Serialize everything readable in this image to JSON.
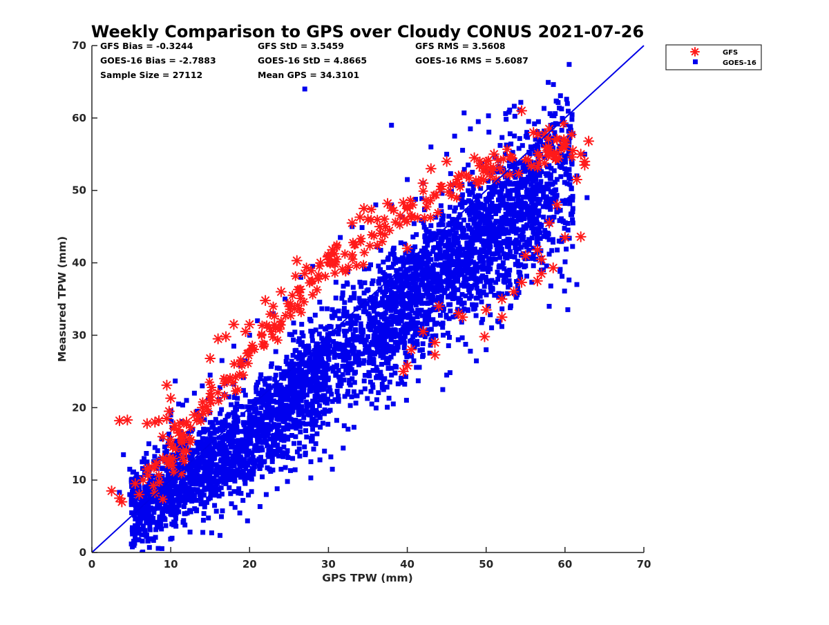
{
  "chart_data": {
    "type": "scatter",
    "title": "Weekly Comparison to GPS over Cloudy CONUS 2021-07-26",
    "xlabel": "GPS TPW (mm)",
    "ylabel": "Measured TPW (mm)",
    "xlim": [
      0,
      70
    ],
    "ylim": [
      0,
      70
    ],
    "x_ticks": [
      0,
      10,
      20,
      30,
      40,
      50,
      60,
      70
    ],
    "y_ticks": [
      0,
      10,
      20,
      30,
      40,
      50,
      60,
      70
    ],
    "grid": false,
    "legend_position": "outside top-right",
    "stats": [
      [
        "GFS Bias = -0.3244",
        "GFS StD = 3.5459",
        "GFS RMS = 3.5608"
      ],
      [
        "GOES-16 Bias = -2.7883",
        "GOES-16 StD = 4.8665",
        "GOES-16 RMS = 5.6087"
      ],
      [
        "Sample Size = 27112",
        "Mean GPS = 34.3101",
        ""
      ]
    ],
    "reference_line": {
      "label": "",
      "from": [
        0,
        0
      ],
      "to": [
        70,
        70
      ],
      "color": "#0000e6"
    },
    "series": [
      {
        "name": "GOES-16",
        "marker": "square",
        "color": "#0000ee",
        "bulk_trend": [
          [
            4,
            5.5
          ],
          [
            10,
            9
          ],
          [
            20,
            16
          ],
          [
            30,
            26
          ],
          [
            40,
            35
          ],
          [
            50,
            44
          ],
          [
            60,
            52
          ]
        ],
        "points": [
          [
            27.0,
            64.0
          ],
          [
            47.2,
            60.7
          ],
          [
            50.3,
            60.3
          ],
          [
            52.9,
            60.8
          ],
          [
            58.1,
            60.6
          ],
          [
            58.6,
            60.3
          ],
          [
            38.0,
            59.0
          ],
          [
            58.3,
            56.5
          ],
          [
            61.0,
            57.8
          ],
          [
            62.5,
            55.0
          ],
          [
            61.5,
            52.0
          ],
          [
            62.8,
            49.0
          ],
          [
            61.0,
            47.5
          ],
          [
            61.0,
            45.5
          ],
          [
            58.0,
            43.2
          ],
          [
            58.0,
            41.2
          ],
          [
            57.0,
            39.0
          ],
          [
            54.0,
            36.8
          ],
          [
            58.2,
            36.8
          ],
          [
            61.5,
            37.0
          ],
          [
            58.0,
            34.0
          ],
          [
            52.0,
            31.2
          ],
          [
            50.0,
            28.0
          ],
          [
            48.0,
            27.8
          ],
          [
            45.0,
            24.5
          ],
          [
            44.5,
            22.5
          ],
          [
            38.0,
            24.5
          ],
          [
            37.0,
            22.5
          ],
          [
            33.0,
            24.0
          ],
          [
            31.5,
            23.0
          ],
          [
            30.0,
            19.5
          ],
          [
            28.0,
            17.0
          ],
          [
            32.0,
            17.5
          ],
          [
            35.5,
            20.5
          ],
          [
            30.5,
            11.5
          ],
          [
            30.3,
            13.2
          ],
          [
            29.5,
            14.0
          ],
          [
            26.3,
            14.3
          ],
          [
            24.0,
            11.5
          ],
          [
            23.5,
            8.8
          ],
          [
            24.8,
            9.8
          ],
          [
            20.2,
            10.5
          ],
          [
            17.0,
            9.5
          ],
          [
            12.5,
            8.5
          ],
          [
            10.0,
            5.3
          ],
          [
            9.0,
            5.3
          ],
          [
            8.6,
            6.5
          ],
          [
            6.5,
            6.0
          ],
          [
            6.5,
            7.0
          ],
          [
            4.0,
            13.5
          ],
          [
            4.8,
            11.5
          ],
          [
            5.5,
            8.5
          ],
          [
            5.0,
            10.0
          ],
          [
            4.8,
            8.0
          ],
          [
            3.5,
            8.3
          ],
          [
            5.3,
            6.8
          ],
          [
            7.0,
            12.5
          ],
          [
            8.0,
            14.5
          ],
          [
            10.0,
            19.0
          ],
          [
            11.0,
            20.5
          ],
          [
            12.0,
            21.0
          ],
          [
            13.0,
            22.0
          ],
          [
            14.0,
            23.0
          ],
          [
            15.0,
            24.5
          ],
          [
            16.5,
            26.5
          ],
          [
            18.0,
            28.5
          ],
          [
            20.0,
            30.0
          ],
          [
            21.0,
            32.0
          ],
          [
            23.0,
            33.0
          ],
          [
            24.5,
            35.0
          ],
          [
            26.5,
            38.0
          ],
          [
            28.0,
            39.5
          ],
          [
            30.0,
            41.0
          ],
          [
            31.5,
            43.5
          ],
          [
            33.0,
            45.0
          ],
          [
            36.0,
            48.0
          ],
          [
            38.0,
            48.0
          ],
          [
            40.0,
            51.5
          ],
          [
            42.0,
            51.0
          ],
          [
            45.0,
            55.0
          ],
          [
            46.0,
            57.5
          ],
          [
            48.0,
            58.5
          ],
          [
            49.0,
            59.5
          ],
          [
            43.0,
            56.0
          ]
        ]
      },
      {
        "name": "GFS",
        "marker": "asterisk",
        "color": "#ff1a1a",
        "bulk_trend": [
          [
            8,
            10
          ],
          [
            12,
            16
          ],
          [
            20,
            28
          ],
          [
            30,
            39
          ],
          [
            40,
            47
          ],
          [
            50,
            53
          ],
          [
            60,
            56
          ]
        ],
        "points": [
          [
            2.5,
            8.5
          ],
          [
            3.5,
            7.5
          ],
          [
            3.8,
            7.0
          ],
          [
            3.5,
            18.2
          ],
          [
            4.5,
            18.3
          ],
          [
            5.5,
            9.5
          ],
          [
            6.0,
            8.0
          ],
          [
            6.5,
            10.0
          ],
          [
            7.0,
            17.8
          ],
          [
            8.0,
            18.0
          ],
          [
            8.5,
            18.2
          ],
          [
            9.5,
            18.5
          ],
          [
            9.8,
            19.5
          ],
          [
            9.5,
            23.1
          ],
          [
            10.0,
            21.3
          ],
          [
            10.5,
            17.5
          ],
          [
            9.0,
            16.0
          ],
          [
            10.0,
            15.0
          ],
          [
            11.0,
            16.5
          ],
          [
            12.0,
            18.0
          ],
          [
            7.0,
            11.5
          ],
          [
            8.0,
            12.0
          ],
          [
            9.0,
            13.0
          ],
          [
            12.0,
            14.0
          ],
          [
            14.0,
            20.0
          ],
          [
            13.0,
            19.0
          ],
          [
            15.0,
            21.0
          ],
          [
            15.0,
            26.8
          ],
          [
            16.0,
            29.5
          ],
          [
            17.0,
            29.8
          ],
          [
            18.0,
            31.5
          ],
          [
            19.5,
            30.5
          ],
          [
            20.0,
            31.5
          ],
          [
            22.0,
            34.8
          ],
          [
            24.0,
            36.0
          ],
          [
            26.0,
            40.3
          ],
          [
            27.0,
            38.5
          ],
          [
            29.0,
            40.0
          ],
          [
            30.0,
            41.0
          ],
          [
            30.5,
            41.8
          ],
          [
            33.0,
            45.5
          ],
          [
            34.0,
            46.3
          ],
          [
            34.5,
            47.5
          ],
          [
            35.0,
            46.0
          ],
          [
            36.5,
            45.0
          ],
          [
            37.5,
            48.2
          ],
          [
            39.5,
            48.3
          ],
          [
            40.0,
            47.5
          ],
          [
            42.0,
            51.0
          ],
          [
            43.0,
            53.0
          ],
          [
            45.0,
            54.0
          ],
          [
            46.5,
            52.0
          ],
          [
            48.5,
            54.5
          ],
          [
            51.0,
            55.0
          ],
          [
            54.5,
            61.0
          ],
          [
            56.0,
            58.0
          ],
          [
            58.0,
            58.5
          ],
          [
            59.0,
            57.0
          ],
          [
            60.0,
            56.5
          ],
          [
            61.0,
            55.5
          ],
          [
            62.0,
            55.0
          ],
          [
            62.5,
            54.0
          ],
          [
            63.0,
            56.8
          ],
          [
            62.5,
            53.5
          ],
          [
            61.5,
            51.5
          ],
          [
            59.0,
            48.0
          ],
          [
            58.0,
            45.5
          ],
          [
            60.0,
            43.5
          ],
          [
            62.0,
            43.6
          ],
          [
            56.5,
            41.8
          ],
          [
            55.0,
            41.0
          ],
          [
            57.0,
            40.5
          ],
          [
            58.5,
            39.3
          ],
          [
            57.0,
            38.5
          ],
          [
            56.5,
            37.5
          ],
          [
            54.5,
            37.3
          ],
          [
            53.5,
            36.0
          ],
          [
            52.0,
            35.0
          ],
          [
            50.0,
            33.5
          ],
          [
            47.0,
            32.5
          ],
          [
            46.5,
            33.0
          ],
          [
            42.0,
            30.5
          ],
          [
            40.5,
            28.0
          ],
          [
            40.0,
            25.8
          ],
          [
            39.5,
            25.0
          ],
          [
            43.5,
            27.3
          ],
          [
            43.5,
            29.0
          ],
          [
            49.8,
            29.8
          ],
          [
            52.0,
            32.5
          ],
          [
            44.0,
            34.0
          ],
          [
            40.0,
            42.0
          ]
        ]
      }
    ]
  }
}
